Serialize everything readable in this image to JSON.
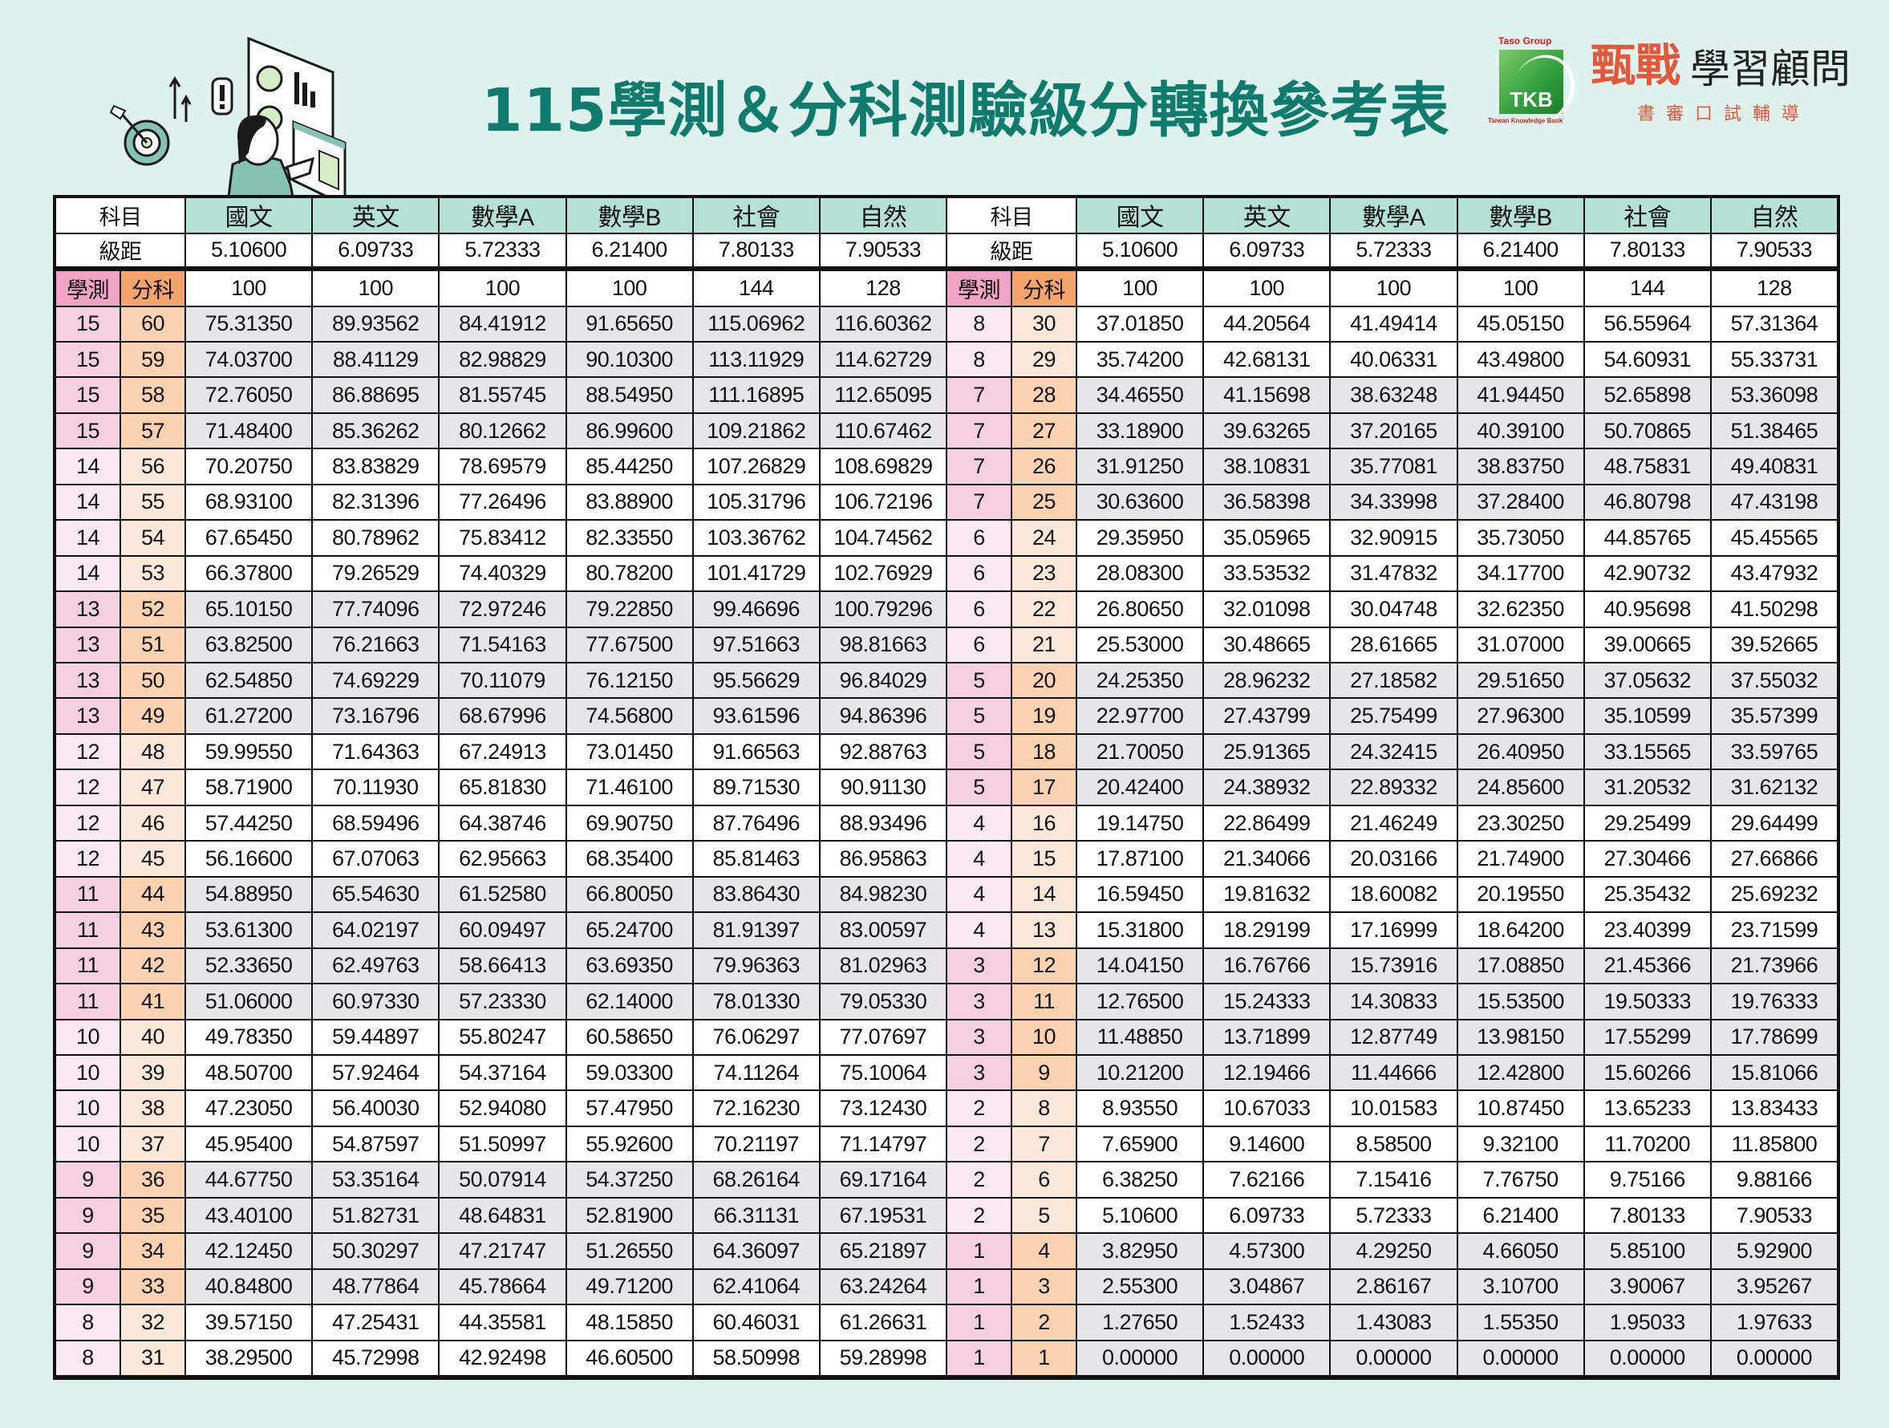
{
  "header": {
    "title": "115學測＆分科測驗級分轉換參考表"
  },
  "logo": {
    "group_label": "Taso Group",
    "mark_text": "TKB",
    "mark_caption": "Taiwan Knowledge Bank",
    "brand_red": "甄戰",
    "brand_black": "學習顧問",
    "brand_sub": "書審口試輔導"
  },
  "colors": {
    "title": "#0f7b6c",
    "background": "#dff2ee",
    "subject_header": "#b5e1d5",
    "xuece_header": "#f0a3c5",
    "fenke_header": "#f5a56b",
    "shaded_row": "#e4e6e8"
  },
  "table": {
    "subject_label": "科目",
    "interval_label": "級距",
    "xuece_label": "學測",
    "fenke_label": "分科",
    "subjects": [
      "國文",
      "英文",
      "數學A",
      "數學B",
      "社會",
      "自然"
    ],
    "intervals": [
      "5.10600",
      "6.09733",
      "5.72333",
      "6.21400",
      "7.80133",
      "7.90533"
    ],
    "full_scores": [
      "100",
      "100",
      "100",
      "100",
      "144",
      "128"
    ],
    "left_rows": [
      {
        "xc": "15",
        "fk": "60",
        "v": [
          "75.31350",
          "89.93562",
          "84.41912",
          "91.65650",
          "115.06962",
          "116.60362"
        ]
      },
      {
        "xc": "15",
        "fk": "59",
        "v": [
          "74.03700",
          "88.41129",
          "82.98829",
          "90.10300",
          "113.11929",
          "114.62729"
        ]
      },
      {
        "xc": "15",
        "fk": "58",
        "v": [
          "72.76050",
          "86.88695",
          "81.55745",
          "88.54950",
          "111.16895",
          "112.65095"
        ]
      },
      {
        "xc": "15",
        "fk": "57",
        "v": [
          "71.48400",
          "85.36262",
          "80.12662",
          "86.99600",
          "109.21862",
          "110.67462"
        ]
      },
      {
        "xc": "14",
        "fk": "56",
        "v": [
          "70.20750",
          "83.83829",
          "78.69579",
          "85.44250",
          "107.26829",
          "108.69829"
        ]
      },
      {
        "xc": "14",
        "fk": "55",
        "v": [
          "68.93100",
          "82.31396",
          "77.26496",
          "83.88900",
          "105.31796",
          "106.72196"
        ]
      },
      {
        "xc": "14",
        "fk": "54",
        "v": [
          "67.65450",
          "80.78962",
          "75.83412",
          "82.33550",
          "103.36762",
          "104.74562"
        ]
      },
      {
        "xc": "14",
        "fk": "53",
        "v": [
          "66.37800",
          "79.26529",
          "74.40329",
          "80.78200",
          "101.41729",
          "102.76929"
        ]
      },
      {
        "xc": "13",
        "fk": "52",
        "v": [
          "65.10150",
          "77.74096",
          "72.97246",
          "79.22850",
          "99.46696",
          "100.79296"
        ]
      },
      {
        "xc": "13",
        "fk": "51",
        "v": [
          "63.82500",
          "76.21663",
          "71.54163",
          "77.67500",
          "97.51663",
          "98.81663"
        ]
      },
      {
        "xc": "13",
        "fk": "50",
        "v": [
          "62.54850",
          "74.69229",
          "70.11079",
          "76.12150",
          "95.56629",
          "96.84029"
        ]
      },
      {
        "xc": "13",
        "fk": "49",
        "v": [
          "61.27200",
          "73.16796",
          "68.67996",
          "74.56800",
          "93.61596",
          "94.86396"
        ]
      },
      {
        "xc": "12",
        "fk": "48",
        "v": [
          "59.99550",
          "71.64363",
          "67.24913",
          "73.01450",
          "91.66563",
          "92.88763"
        ]
      },
      {
        "xc": "12",
        "fk": "47",
        "v": [
          "58.71900",
          "70.11930",
          "65.81830",
          "71.46100",
          "89.71530",
          "90.91130"
        ]
      },
      {
        "xc": "12",
        "fk": "46",
        "v": [
          "57.44250",
          "68.59496",
          "64.38746",
          "69.90750",
          "87.76496",
          "88.93496"
        ]
      },
      {
        "xc": "12",
        "fk": "45",
        "v": [
          "56.16600",
          "67.07063",
          "62.95663",
          "68.35400",
          "85.81463",
          "86.95863"
        ]
      },
      {
        "xc": "11",
        "fk": "44",
        "v": [
          "54.88950",
          "65.54630",
          "61.52580",
          "66.80050",
          "83.86430",
          "84.98230"
        ]
      },
      {
        "xc": "11",
        "fk": "43",
        "v": [
          "53.61300",
          "64.02197",
          "60.09497",
          "65.24700",
          "81.91397",
          "83.00597"
        ]
      },
      {
        "xc": "11",
        "fk": "42",
        "v": [
          "52.33650",
          "62.49763",
          "58.66413",
          "63.69350",
          "79.96363",
          "81.02963"
        ]
      },
      {
        "xc": "11",
        "fk": "41",
        "v": [
          "51.06000",
          "60.97330",
          "57.23330",
          "62.14000",
          "78.01330",
          "79.05330"
        ]
      },
      {
        "xc": "10",
        "fk": "40",
        "v": [
          "49.78350",
          "59.44897",
          "55.80247",
          "60.58650",
          "76.06297",
          "77.07697"
        ]
      },
      {
        "xc": "10",
        "fk": "39",
        "v": [
          "48.50700",
          "57.92464",
          "54.37164",
          "59.03300",
          "74.11264",
          "75.10064"
        ]
      },
      {
        "xc": "10",
        "fk": "38",
        "v": [
          "47.23050",
          "56.40030",
          "52.94080",
          "57.47950",
          "72.16230",
          "73.12430"
        ]
      },
      {
        "xc": "10",
        "fk": "37",
        "v": [
          "45.95400",
          "54.87597",
          "51.50997",
          "55.92600",
          "70.21197",
          "71.14797"
        ]
      },
      {
        "xc": "9",
        "fk": "36",
        "v": [
          "44.67750",
          "53.35164",
          "50.07914",
          "54.37250",
          "68.26164",
          "69.17164"
        ]
      },
      {
        "xc": "9",
        "fk": "35",
        "v": [
          "43.40100",
          "51.82731",
          "48.64831",
          "52.81900",
          "66.31131",
          "67.19531"
        ]
      },
      {
        "xc": "9",
        "fk": "34",
        "v": [
          "42.12450",
          "50.30297",
          "47.21747",
          "51.26550",
          "64.36097",
          "65.21897"
        ]
      },
      {
        "xc": "9",
        "fk": "33",
        "v": [
          "40.84800",
          "48.77864",
          "45.78664",
          "49.71200",
          "62.41064",
          "63.24264"
        ]
      },
      {
        "xc": "8",
        "fk": "32",
        "v": [
          "39.57150",
          "47.25431",
          "44.35581",
          "48.15850",
          "60.46031",
          "61.26631"
        ]
      },
      {
        "xc": "8",
        "fk": "31",
        "v": [
          "38.29500",
          "45.72998",
          "42.92498",
          "46.60500",
          "58.50998",
          "59.28998"
        ]
      }
    ],
    "right_rows": [
      {
        "xc": "8",
        "fk": "30",
        "v": [
          "37.01850",
          "44.20564",
          "41.49414",
          "45.05150",
          "56.55964",
          "57.31364"
        ]
      },
      {
        "xc": "8",
        "fk": "29",
        "v": [
          "35.74200",
          "42.68131",
          "40.06331",
          "43.49800",
          "54.60931",
          "55.33731"
        ]
      },
      {
        "xc": "7",
        "fk": "28",
        "v": [
          "34.46550",
          "41.15698",
          "38.63248",
          "41.94450",
          "52.65898",
          "53.36098"
        ]
      },
      {
        "xc": "7",
        "fk": "27",
        "v": [
          "33.18900",
          "39.63265",
          "37.20165",
          "40.39100",
          "50.70865",
          "51.38465"
        ]
      },
      {
        "xc": "7",
        "fk": "26",
        "v": [
          "31.91250",
          "38.10831",
          "35.77081",
          "38.83750",
          "48.75831",
          "49.40831"
        ]
      },
      {
        "xc": "7",
        "fk": "25",
        "v": [
          "30.63600",
          "36.58398",
          "34.33998",
          "37.28400",
          "46.80798",
          "47.43198"
        ]
      },
      {
        "xc": "6",
        "fk": "24",
        "v": [
          "29.35950",
          "35.05965",
          "32.90915",
          "35.73050",
          "44.85765",
          "45.45565"
        ]
      },
      {
        "xc": "6",
        "fk": "23",
        "v": [
          "28.08300",
          "33.53532",
          "31.47832",
          "34.17700",
          "42.90732",
          "43.47932"
        ]
      },
      {
        "xc": "6",
        "fk": "22",
        "v": [
          "26.80650",
          "32.01098",
          "30.04748",
          "32.62350",
          "40.95698",
          "41.50298"
        ]
      },
      {
        "xc": "6",
        "fk": "21",
        "v": [
          "25.53000",
          "30.48665",
          "28.61665",
          "31.07000",
          "39.00665",
          "39.52665"
        ]
      },
      {
        "xc": "5",
        "fk": "20",
        "v": [
          "24.25350",
          "28.96232",
          "27.18582",
          "29.51650",
          "37.05632",
          "37.55032"
        ]
      },
      {
        "xc": "5",
        "fk": "19",
        "v": [
          "22.97700",
          "27.43799",
          "25.75499",
          "27.96300",
          "35.10599",
          "35.57399"
        ]
      },
      {
        "xc": "5",
        "fk": "18",
        "v": [
          "21.70050",
          "25.91365",
          "24.32415",
          "26.40950",
          "33.15565",
          "33.59765"
        ]
      },
      {
        "xc": "5",
        "fk": "17",
        "v": [
          "20.42400",
          "24.38932",
          "22.89332",
          "24.85600",
          "31.20532",
          "31.62132"
        ]
      },
      {
        "xc": "4",
        "fk": "16",
        "v": [
          "19.14750",
          "22.86499",
          "21.46249",
          "23.30250",
          "29.25499",
          "29.64499"
        ]
      },
      {
        "xc": "4",
        "fk": "15",
        "v": [
          "17.87100",
          "21.34066",
          "20.03166",
          "21.74900",
          "27.30466",
          "27.66866"
        ]
      },
      {
        "xc": "4",
        "fk": "14",
        "v": [
          "16.59450",
          "19.81632",
          "18.60082",
          "20.19550",
          "25.35432",
          "25.69232"
        ]
      },
      {
        "xc": "4",
        "fk": "13",
        "v": [
          "15.31800",
          "18.29199",
          "17.16999",
          "18.64200",
          "23.40399",
          "23.71599"
        ]
      },
      {
        "xc": "3",
        "fk": "12",
        "v": [
          "14.04150",
          "16.76766",
          "15.73916",
          "17.08850",
          "21.45366",
          "21.73966"
        ]
      },
      {
        "xc": "3",
        "fk": "11",
        "v": [
          "12.76500",
          "15.24333",
          "14.30833",
          "15.53500",
          "19.50333",
          "19.76333"
        ]
      },
      {
        "xc": "3",
        "fk": "10",
        "v": [
          "11.48850",
          "13.71899",
          "12.87749",
          "13.98150",
          "17.55299",
          "17.78699"
        ]
      },
      {
        "xc": "3",
        "fk": "9",
        "v": [
          "10.21200",
          "12.19466",
          "11.44666",
          "12.42800",
          "15.60266",
          "15.81066"
        ]
      },
      {
        "xc": "2",
        "fk": "8",
        "v": [
          "8.93550",
          "10.67033",
          "10.01583",
          "10.87450",
          "13.65233",
          "13.83433"
        ]
      },
      {
        "xc": "2",
        "fk": "7",
        "v": [
          "7.65900",
          "9.14600",
          "8.58500",
          "9.32100",
          "11.70200",
          "11.85800"
        ]
      },
      {
        "xc": "2",
        "fk": "6",
        "v": [
          "6.38250",
          "7.62166",
          "7.15416",
          "7.76750",
          "9.75166",
          "9.88166"
        ]
      },
      {
        "xc": "2",
        "fk": "5",
        "v": [
          "5.10600",
          "6.09733",
          "5.72333",
          "6.21400",
          "7.80133",
          "7.90533"
        ]
      },
      {
        "xc": "1",
        "fk": "4",
        "v": [
          "3.82950",
          "4.57300",
          "4.29250",
          "4.66050",
          "5.85100",
          "5.92900"
        ]
      },
      {
        "xc": "1",
        "fk": "3",
        "v": [
          "2.55300",
          "3.04867",
          "2.86167",
          "3.10700",
          "3.90067",
          "3.95267"
        ]
      },
      {
        "xc": "1",
        "fk": "2",
        "v": [
          "1.27650",
          "1.52433",
          "1.43083",
          "1.55350",
          "1.95033",
          "1.97633"
        ]
      },
      {
        "xc": "1",
        "fk": "1",
        "v": [
          "0.00000",
          "0.00000",
          "0.00000",
          "0.00000",
          "0.00000",
          "0.00000"
        ]
      }
    ]
  }
}
